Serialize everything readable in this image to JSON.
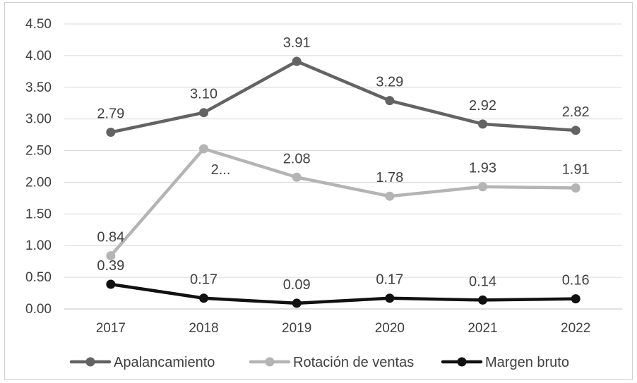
{
  "chart_data": {
    "type": "line",
    "title": "",
    "xlabel": "",
    "ylabel": "",
    "categories": [
      "2017",
      "2018",
      "2019",
      "2020",
      "2021",
      "2022"
    ],
    "ylim": [
      0,
      4.5
    ],
    "yticks": [
      "0.00",
      "0.50",
      "1.00",
      "1.50",
      "2.00",
      "2.50",
      "3.00",
      "3.50",
      "4.00",
      "4.50"
    ],
    "grid": true,
    "legend_position": "bottom",
    "series": [
      {
        "name": "Apalancamiento",
        "color": "#636363",
        "values": [
          2.79,
          3.1,
          3.91,
          3.29,
          2.92,
          2.82
        ],
        "labels": [
          "2.79",
          "3.10",
          "3.91",
          "3.29",
          "2.92",
          "2.82"
        ]
      },
      {
        "name": "Rotación de ventas",
        "color": "#b4b4b4",
        "values": [
          0.84,
          2.53,
          2.08,
          1.78,
          1.93,
          1.91
        ],
        "labels": [
          "0.84",
          "2...",
          "2.08",
          "1.78",
          "1.93",
          "1.91"
        ]
      },
      {
        "name": "Margen bruto",
        "color": "#111111",
        "values": [
          0.39,
          0.17,
          0.09,
          0.17,
          0.14,
          0.16
        ],
        "labels": [
          "0.39",
          "0.17",
          "0.09",
          "0.17",
          "0.14",
          "0.16"
        ]
      }
    ]
  }
}
